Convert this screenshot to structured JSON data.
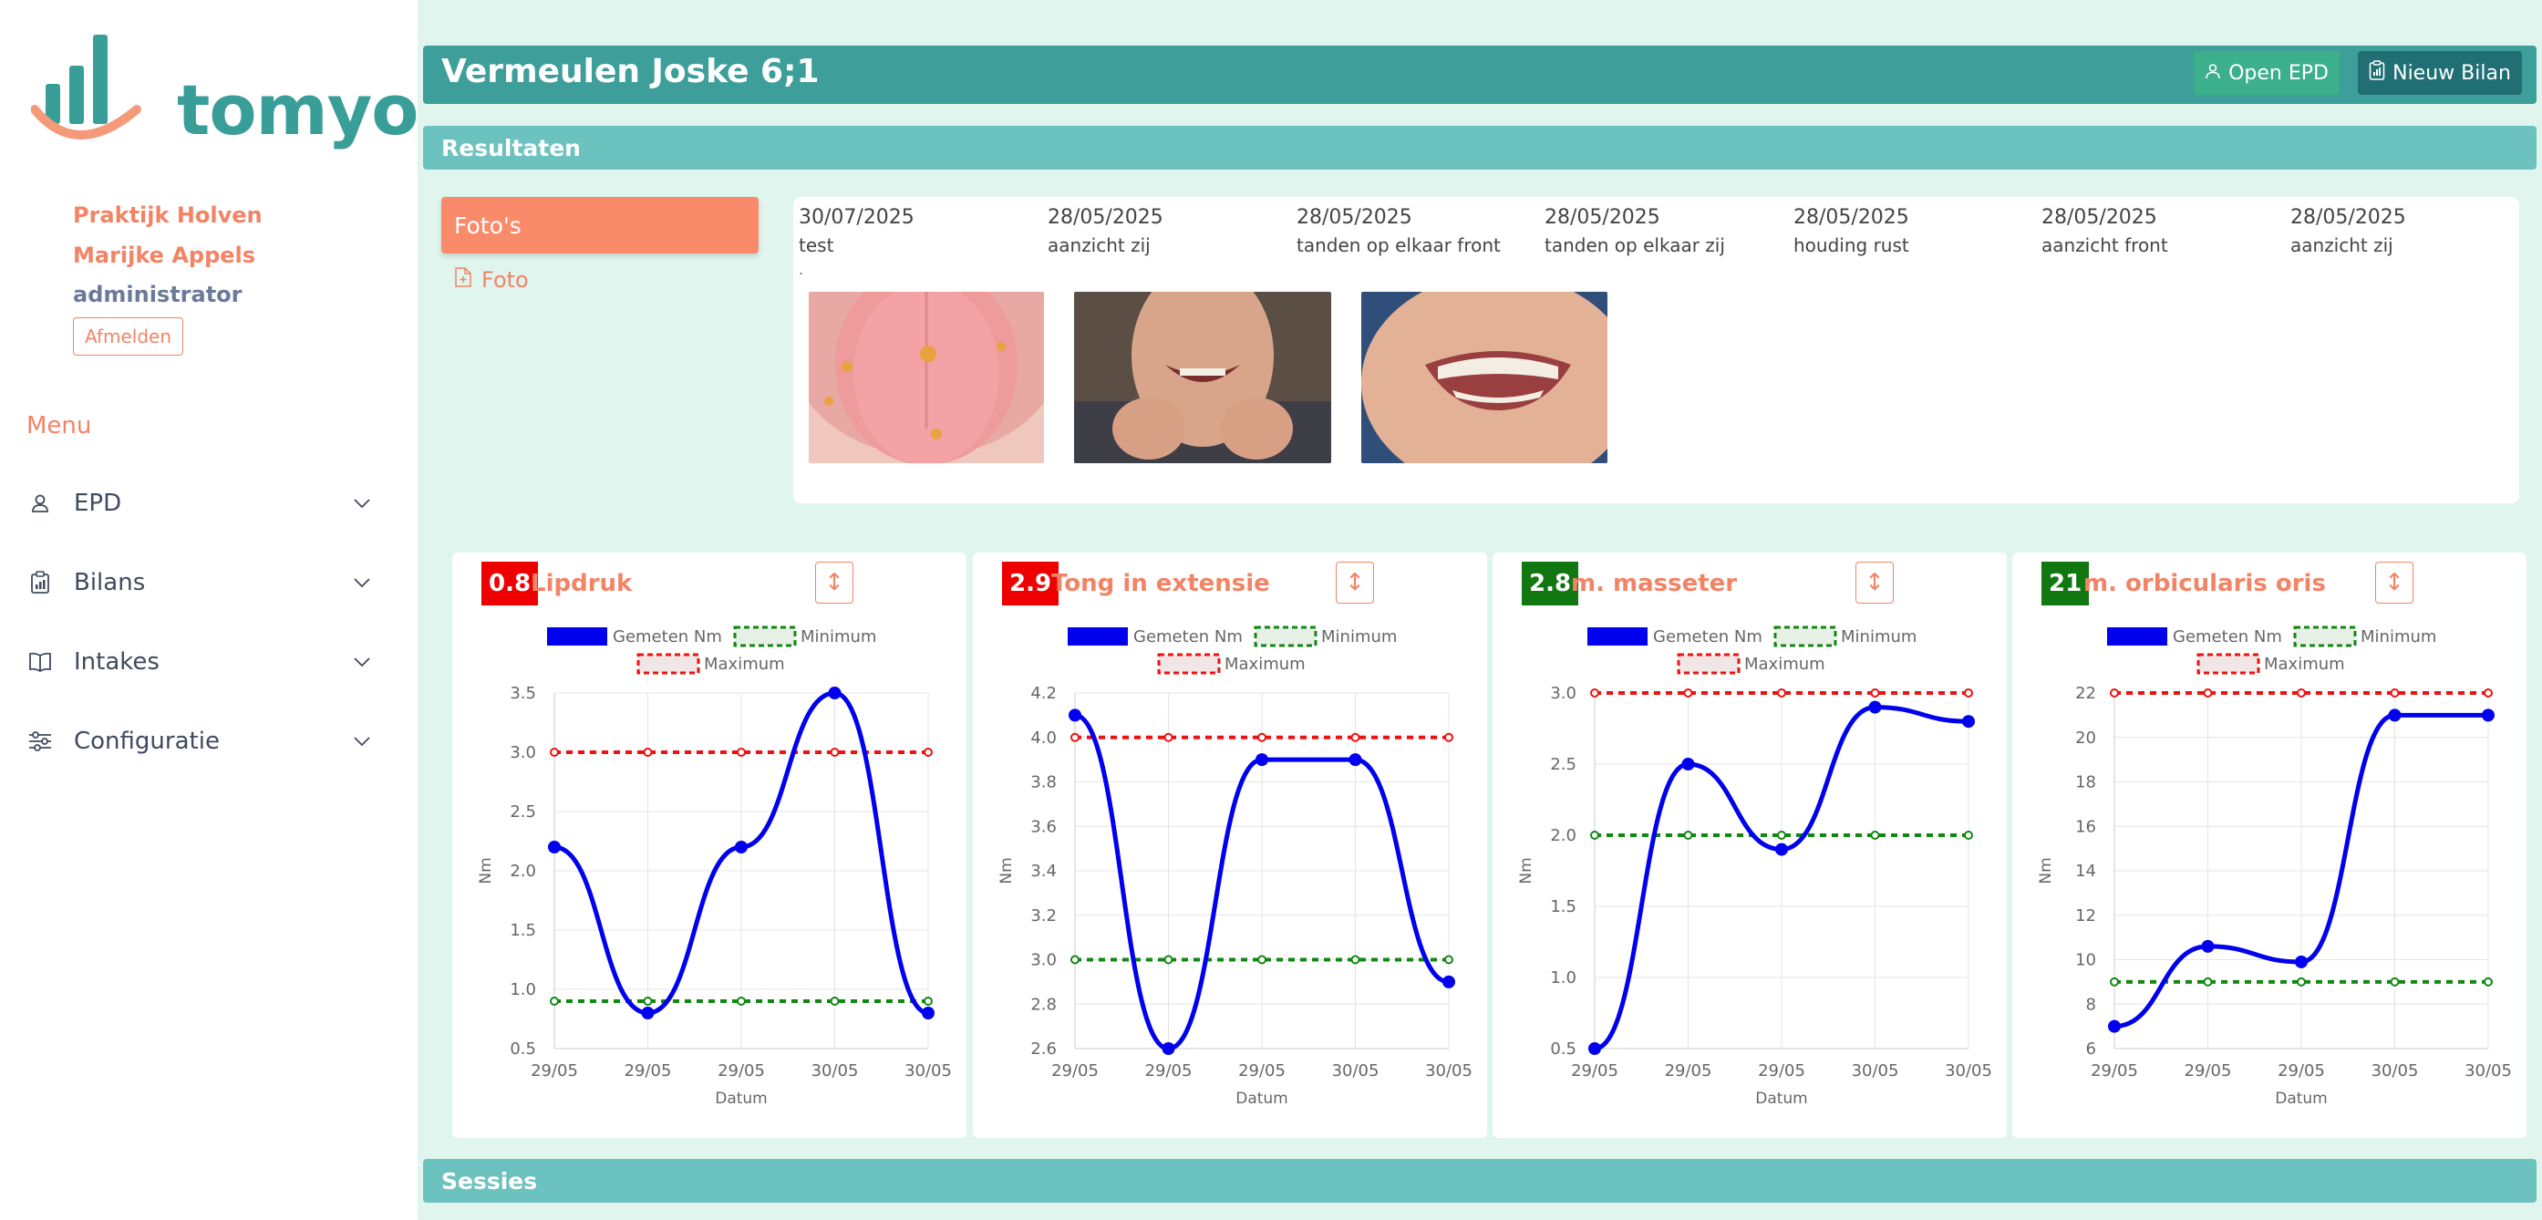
{
  "app": {
    "logo_text": "tomyo"
  },
  "user": {
    "practice": "Praktijk Holven",
    "name": "Marijke Appels",
    "role": "administrator",
    "logout_label": "Afmelden"
  },
  "menu": {
    "title": "Menu",
    "items": [
      {
        "label": "EPD",
        "icon": "user-icon"
      },
      {
        "label": "Bilans",
        "icon": "clipboard-chart-icon"
      },
      {
        "label": "Intakes",
        "icon": "book-icon"
      },
      {
        "label": "Configuratie",
        "icon": "sliders-icon"
      }
    ]
  },
  "header": {
    "title": "Vermeulen Joske 6;1",
    "open_epd_label": "Open EPD",
    "new_bilan_label": "Nieuw Bilan"
  },
  "sections": {
    "results": "Resultaten",
    "sessions": "Sessies"
  },
  "photos": {
    "tab_label": "Foto's",
    "add_label": "Foto",
    "dot": ".",
    "entries": [
      {
        "date": "30/07/2025",
        "label": "test"
      },
      {
        "date": "28/05/2025",
        "label": "aanzicht zij"
      },
      {
        "date": "28/05/2025",
        "label": "tanden op elkaar front"
      },
      {
        "date": "28/05/2025",
        "label": "tanden op elkaar zij"
      },
      {
        "date": "28/05/2025",
        "label": "houding rust"
      },
      {
        "date": "28/05/2025",
        "label": "aanzicht front"
      },
      {
        "date": "28/05/2025",
        "label": "aanzicht zij"
      }
    ]
  },
  "colors": {
    "measured": "#0000ee",
    "minimum": "#118811",
    "maximum": "#ee1111",
    "badge_red": "#ee0000",
    "badge_green": "#117711",
    "accent": "#f28466",
    "teal": "#3d9e9a"
  },
  "chart_legend": {
    "measured": "Gemeten Nm",
    "minimum": "Minimum",
    "maximum": "Maximum"
  },
  "chart_data": [
    {
      "type": "line",
      "title": "Lipdruk",
      "badge": "0.8",
      "badge_color": "#ee0000",
      "x": [
        "29/05",
        "29/05",
        "29/05",
        "30/05",
        "30/05"
      ],
      "xlabel": "Datum",
      "ylabel": "Nm",
      "ylim": [
        0.5,
        3.5
      ],
      "yticks": [
        "3.5",
        "3.0",
        "2.5",
        "2.0",
        "1.5",
        "1.0",
        "0.5"
      ],
      "series": [
        {
          "name": "Gemeten Nm",
          "values": [
            2.2,
            0.8,
            2.2,
            3.5,
            0.8
          ]
        },
        {
          "name": "Minimum",
          "values": [
            0.9,
            0.9,
            0.9,
            0.9,
            0.9
          ]
        },
        {
          "name": "Maximum",
          "values": [
            3.0,
            3.0,
            3.0,
            3.0,
            3.0
          ]
        }
      ]
    },
    {
      "type": "line",
      "title": "Tong in extensie",
      "badge": "2.9",
      "badge_color": "#ee0000",
      "x": [
        "29/05",
        "29/05",
        "29/05",
        "30/05",
        "30/05"
      ],
      "xlabel": "Datum",
      "ylabel": "Nm",
      "ylim": [
        2.6,
        4.2
      ],
      "yticks": [
        "4.2",
        "4.0",
        "3.8",
        "3.6",
        "3.4",
        "3.2",
        "3.0",
        "2.8",
        "2.6"
      ],
      "series": [
        {
          "name": "Gemeten Nm",
          "values": [
            4.1,
            2.6,
            3.9,
            3.9,
            2.9
          ]
        },
        {
          "name": "Minimum",
          "values": [
            3.0,
            3.0,
            3.0,
            3.0,
            3.0
          ]
        },
        {
          "name": "Maximum",
          "values": [
            4.0,
            4.0,
            4.0,
            4.0,
            4.0
          ]
        }
      ]
    },
    {
      "type": "line",
      "title": "m. masseter",
      "badge": "2.8",
      "badge_color": "#117711",
      "x": [
        "29/05",
        "29/05",
        "29/05",
        "30/05",
        "30/05"
      ],
      "xlabel": "Datum",
      "ylabel": "Nm",
      "ylim": [
        0.5,
        3.0
      ],
      "yticks": [
        "3.0",
        "2.5",
        "2.0",
        "1.5",
        "1.0",
        "0.5"
      ],
      "series": [
        {
          "name": "Gemeten Nm",
          "values": [
            0.5,
            2.5,
            1.9,
            2.9,
            2.8
          ]
        },
        {
          "name": "Minimum",
          "values": [
            2.0,
            2.0,
            2.0,
            2.0,
            2.0
          ]
        },
        {
          "name": "Maximum",
          "values": [
            3.0,
            3.0,
            3.0,
            3.0,
            3.0
          ]
        }
      ]
    },
    {
      "type": "line",
      "title": "m. orbicularis oris",
      "badge": "21",
      "badge_color": "#117711",
      "x": [
        "29/05",
        "29/05",
        "29/05",
        "30/05",
        "30/05"
      ],
      "xlabel": "Datum",
      "ylabel": "Nm",
      "ylim": [
        6,
        22
      ],
      "yticks": [
        "22",
        "20",
        "18",
        "16",
        "14",
        "12",
        "10",
        "8",
        "6"
      ],
      "series": [
        {
          "name": "Gemeten Nm",
          "values": [
            7,
            10.6,
            9.9,
            21,
            21
          ]
        },
        {
          "name": "Minimum",
          "values": [
            9,
            9,
            9,
            9,
            9
          ]
        },
        {
          "name": "Maximum",
          "values": [
            22,
            22,
            22,
            22,
            22
          ]
        }
      ]
    }
  ]
}
